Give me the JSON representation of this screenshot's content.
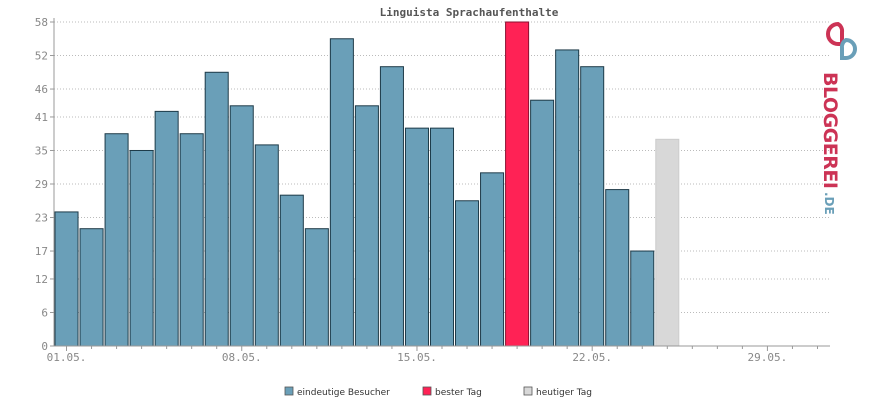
{
  "chart_data": {
    "type": "bar",
    "title": "Linguista Sprachaufenthalte",
    "y_ticks": [
      0,
      6,
      12,
      17,
      23,
      29,
      35,
      41,
      46,
      52,
      58
    ],
    "ylim": [
      0,
      58
    ],
    "x_tick_labels": [
      "01.05.",
      "08.05.",
      "15.05.",
      "22.05.",
      "29.05."
    ],
    "x_tick_days": [
      1,
      8,
      15,
      22,
      29
    ],
    "day_range": [
      1,
      31
    ],
    "grid": true,
    "values": [
      24,
      21,
      38,
      35,
      42,
      38,
      49,
      43,
      36,
      27,
      21,
      55,
      43,
      50,
      39,
      39,
      26,
      31,
      58,
      44,
      53,
      50,
      28,
      17,
      37
    ],
    "best_day_index": 18,
    "today_index": 24,
    "colors": {
      "normal": "#6a9fb8",
      "best": "#ff2255",
      "today": "#d8d8d8",
      "axis": "#999999",
      "grid": "#bbbbbb"
    },
    "legend": [
      {
        "label": "eindeutige Besucher",
        "color": "#6a9fb8"
      },
      {
        "label": "bester Tag",
        "color": "#ff2255"
      },
      {
        "label": "heutiger Tag",
        "color": "#d8d8d8"
      }
    ],
    "legend_position": "bottom"
  },
  "logo": {
    "text": "BLOGGEREI",
    "suffix": ".DE",
    "colors": {
      "main": "#cc3355",
      "suffix": "#6a9fb8"
    }
  }
}
